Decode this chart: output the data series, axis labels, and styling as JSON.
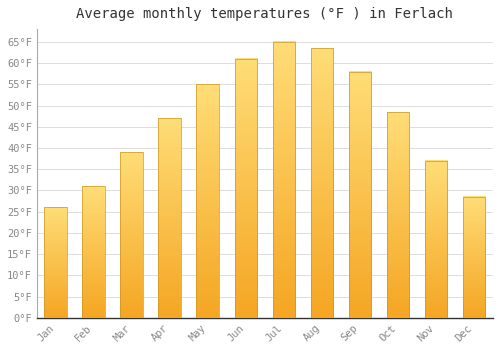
{
  "title": "Average monthly temperatures (°F ) in Ferlach",
  "months": [
    "Jan",
    "Feb",
    "Mar",
    "Apr",
    "May",
    "Jun",
    "Jul",
    "Aug",
    "Sep",
    "Oct",
    "Nov",
    "Dec"
  ],
  "values": [
    26,
    31,
    39,
    47,
    55,
    61,
    65,
    63.5,
    58,
    48.5,
    37,
    28.5
  ],
  "bar_color_bottom": "#F5A623",
  "bar_color_top": "#FFDD77",
  "bar_edge_color": "#C8962A",
  "background_color": "#FFFFFF",
  "plot_bg_color": "#FFFFFF",
  "grid_color": "#DDDDDD",
  "text_color": "#888888",
  "ylim": [
    0,
    68
  ],
  "yticks": [
    0,
    5,
    10,
    15,
    20,
    25,
    30,
    35,
    40,
    45,
    50,
    55,
    60,
    65
  ],
  "ytick_labels": [
    "0°F",
    "5°F",
    "10°F",
    "15°F",
    "20°F",
    "25°F",
    "30°F",
    "35°F",
    "40°F",
    "45°F",
    "50°F",
    "55°F",
    "60°F",
    "65°F"
  ],
  "title_fontsize": 10,
  "tick_fontsize": 7.5,
  "font_family": "monospace",
  "title_color": "#333333"
}
